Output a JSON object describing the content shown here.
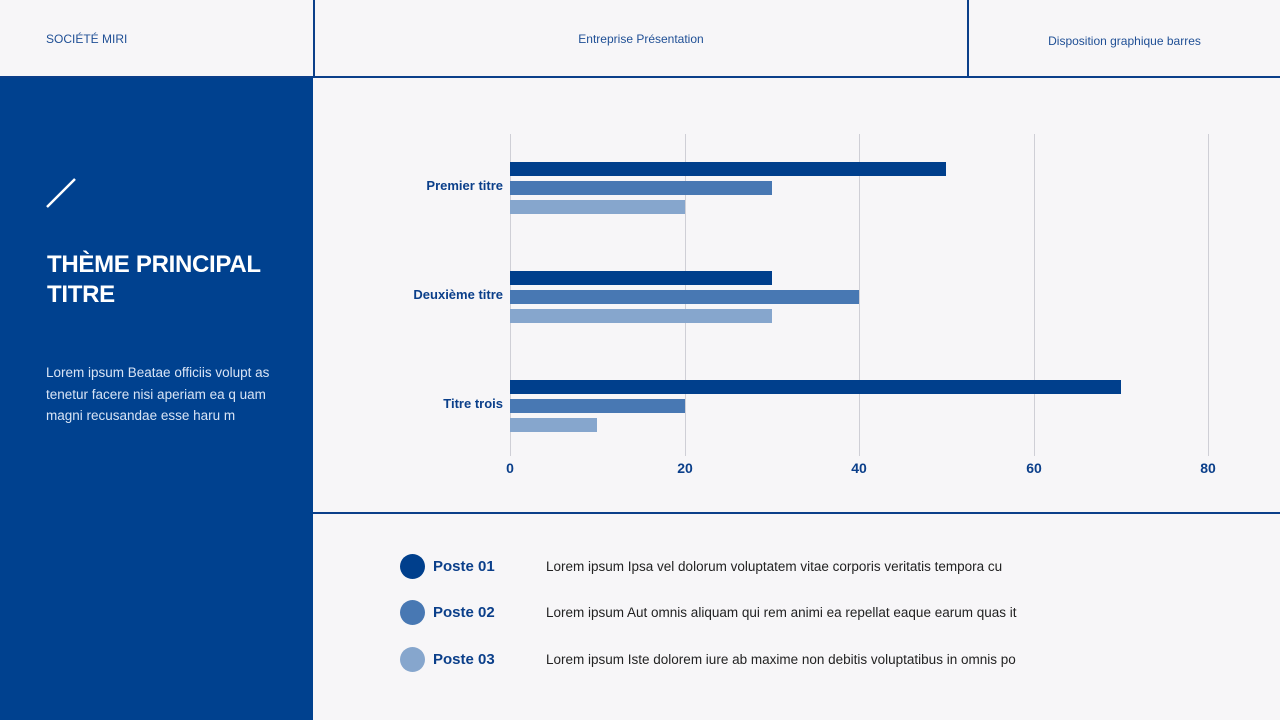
{
  "header": {
    "company": "SOCIÉTÉ MIRI",
    "center": "Entreprise Présentation",
    "right": "Disposition graphique barres"
  },
  "sidebar": {
    "icon": "slash-decoration-icon",
    "title_line1": "THÈME PRINCIPAL",
    "title_line2": "TITRE",
    "body": "Lorem ipsum Beatae officiis volupt as tenetur facere nisi aperiam ea q uam magni recusandae esse haru m"
  },
  "colors": {
    "primary": "#00418f",
    "series1": "#003f8c",
    "series2": "#4878b3",
    "series3": "#86a6cd",
    "background": "#f7f6f8"
  },
  "chart_data": {
    "type": "bar",
    "orientation": "horizontal",
    "title": "",
    "xlabel": "",
    "ylabel": "",
    "categories": [
      "Premier titre",
      "Deuxième titre",
      "Titre trois"
    ],
    "series": [
      {
        "name": "Poste 01",
        "color": "#003f8c",
        "values": [
          50,
          30,
          70
        ]
      },
      {
        "name": "Poste 02",
        "color": "#4878b3",
        "values": [
          30,
          40,
          20
        ]
      },
      {
        "name": "Poste 03",
        "color": "#86a6cd",
        "values": [
          20,
          30,
          10
        ]
      }
    ],
    "xlim": [
      0,
      80
    ],
    "xticks": [
      "0",
      "20",
      "40",
      "60",
      "80"
    ],
    "grid": "vertical",
    "legend_position": "bottom"
  },
  "legend": [
    {
      "label": "Poste 01",
      "color": "#003f8c",
      "desc": "Lorem ipsum Ipsa vel dolorum voluptatem vitae corporis veritatis tempora cu"
    },
    {
      "label": "Poste 02",
      "color": "#4878b3",
      "desc": "Lorem ipsum Aut omnis aliquam qui rem animi ea repellat eaque earum quas it"
    },
    {
      "label": "Poste 03",
      "color": "#86a6cd",
      "desc": "Lorem ipsum Iste dolorem iure ab maxime non debitis voluptatibus in omnis po"
    }
  ]
}
